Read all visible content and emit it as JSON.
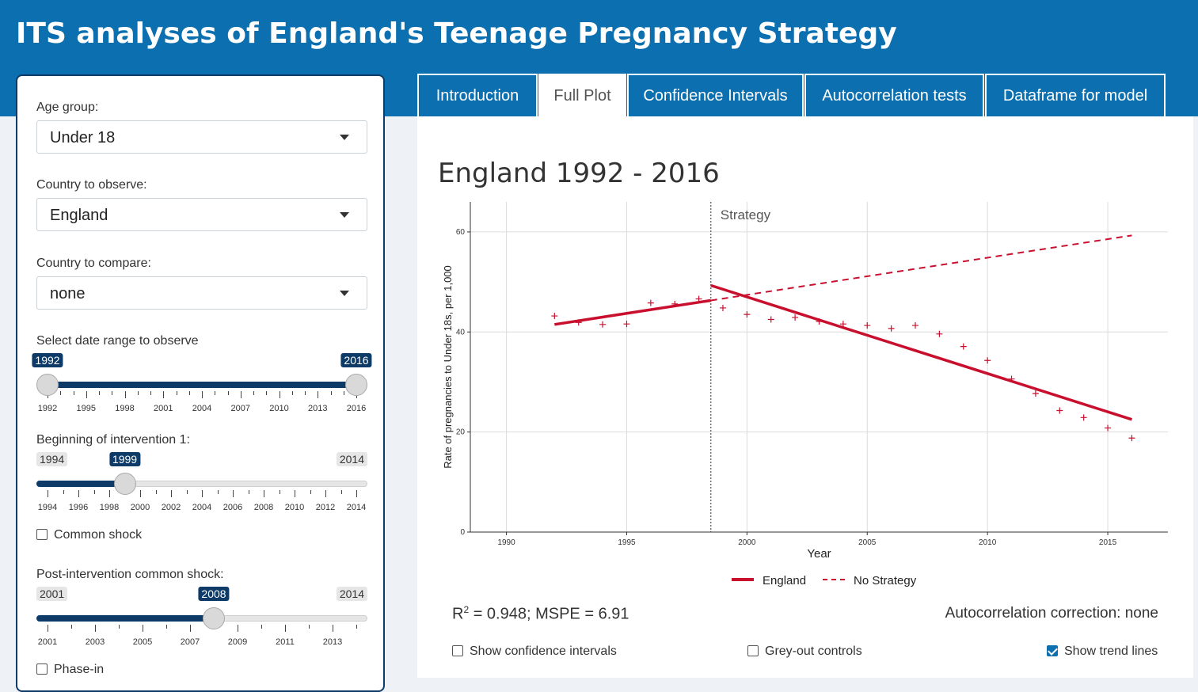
{
  "app_title": "ITS analyses of England's Teenage Pregnancy Strategy",
  "tabs": [
    {
      "label": "Introduction",
      "active": false
    },
    {
      "label": "Full Plot",
      "active": true
    },
    {
      "label": "Confidence Intervals",
      "active": false
    },
    {
      "label": "Autocorrelation tests",
      "active": false
    },
    {
      "label": "Dataframe for model",
      "active": false
    }
  ],
  "sidebar": {
    "age_group": {
      "label": "Age group:",
      "value": "Under 18"
    },
    "country_observe": {
      "label": "Country to observe:",
      "value": "England"
    },
    "country_compare": {
      "label": "Country to compare:",
      "value": "none"
    },
    "date_range": {
      "label": "Select date range to observe",
      "min": 1992,
      "max": 2016,
      "low": 1992,
      "high": 2016,
      "low_label": "1992",
      "high_label": "2016",
      "tick_labels": [
        "1992",
        "1995",
        "1998",
        "2001",
        "2004",
        "2007",
        "2010",
        "2013",
        "2016"
      ]
    },
    "intervention1": {
      "label": "Beginning of intervention 1:",
      "min": 1994,
      "max": 2014,
      "value": 1999,
      "min_label": "1994",
      "max_label": "2014",
      "value_label": "1999",
      "tick_labels": [
        "1994",
        "1996",
        "1998",
        "2000",
        "2002",
        "2004",
        "2006",
        "2008",
        "2010",
        "2012",
        "2014"
      ]
    },
    "common_shock": {
      "label": "Common shock",
      "checked": false
    },
    "post_common_shock": {
      "label": "Post-intervention common shock:",
      "min": 2001,
      "max": 2014,
      "value": 2008,
      "min_label": "2001",
      "max_label": "2014",
      "value_label": "2008",
      "tick_labels": [
        "2001",
        "2003",
        "2005",
        "2007",
        "2009",
        "2011",
        "2013"
      ]
    },
    "phase_in": {
      "label": "Phase-in",
      "checked": false
    }
  },
  "main": {
    "plot_title": "England 1992 - 2016",
    "stats": {
      "r2_prefix": "R",
      "r2_sup": "2",
      "r2_text": " = 0.948; MSPE = 6.91"
    },
    "autocorr": "Autocorrelation correction: none",
    "options": [
      {
        "label": "Show confidence intervals",
        "checked": false
      },
      {
        "label": "Grey-out controls",
        "checked": false
      },
      {
        "label": "Show trend lines",
        "checked": true
      }
    ]
  },
  "chart_data": {
    "type": "scatter",
    "xlabel": "Year",
    "ylabel": "Rate of pregnancies to Under 18s, per 1,000",
    "xlim": [
      1988.5,
      2017.5
    ],
    "ylim": [
      0,
      66
    ],
    "x_ticks": [
      1990,
      1995,
      2000,
      2005,
      2010,
      2015
    ],
    "y_ticks": [
      0,
      20,
      40,
      60
    ],
    "grid": true,
    "legend_position": "bottom",
    "colors": {
      "accent": "#c8102e"
    },
    "intervention": {
      "x": 1998.5,
      "label": "Strategy"
    },
    "observed": {
      "x": [
        1992,
        1993,
        1994,
        1995,
        1996,
        1997,
        1998,
        1999,
        2000,
        2001,
        2002,
        2003,
        2004,
        2005,
        2006,
        2007,
        2008,
        2009,
        2010,
        2011,
        2012,
        2013,
        2014,
        2015,
        2016
      ],
      "y": [
        43.2,
        41.9,
        41.5,
        41.6,
        45.8,
        45.6,
        46.6,
        44.8,
        43.5,
        42.5,
        42.9,
        42.1,
        41.6,
        41.3,
        40.7,
        41.3,
        39.6,
        37.1,
        34.3,
        30.6,
        27.7,
        24.3,
        22.9,
        20.8,
        18.8
      ]
    },
    "series": [
      {
        "name": "England",
        "style": "solid",
        "x": [
          1992,
          1998.5,
          1998.5,
          2016
        ],
        "y": [
          41.5,
          46.3,
          49.3,
          22.5
        ],
        "break_after": 1
      },
      {
        "name": "No Strategy",
        "style": "dashed",
        "x": [
          1998.5,
          2016
        ],
        "y": [
          46.3,
          59.3
        ]
      }
    ]
  }
}
